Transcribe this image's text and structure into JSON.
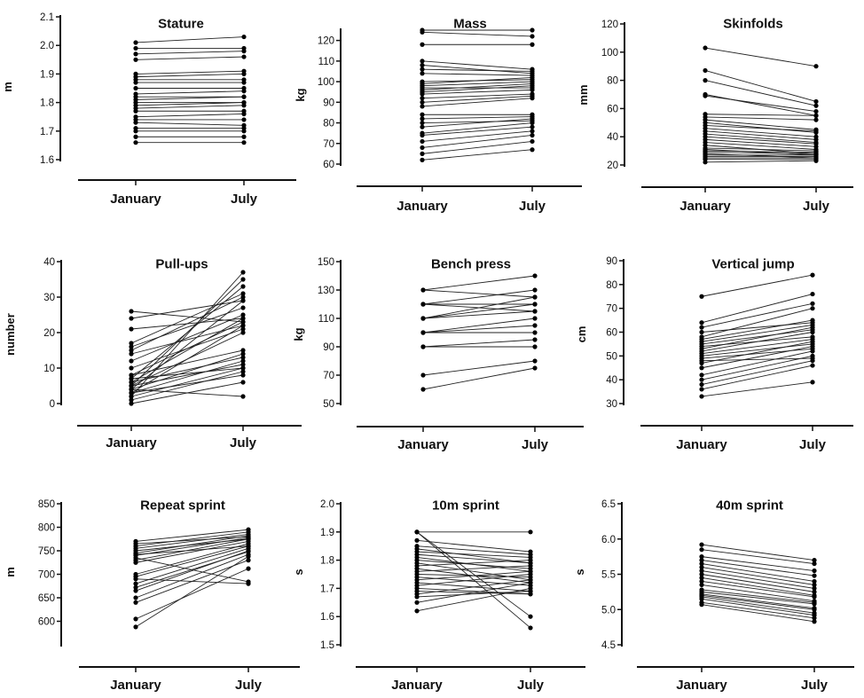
{
  "chart_data": [
    {
      "type": "line",
      "title": "Stature",
      "ylabel": "m",
      "categories": [
        "January",
        "July"
      ],
      "ylim": [
        1.6,
        2.1
      ],
      "yticks": [
        "1.6",
        "1.7",
        "1.8",
        "1.9",
        "2.0",
        "2.1"
      ],
      "pairs": [
        [
          1.66,
          1.66
        ],
        [
          1.68,
          1.68
        ],
        [
          1.7,
          1.7
        ],
        [
          1.71,
          1.71
        ],
        [
          1.73,
          1.72
        ],
        [
          1.74,
          1.74
        ],
        [
          1.75,
          1.76
        ],
        [
          1.77,
          1.77
        ],
        [
          1.78,
          1.79
        ],
        [
          1.79,
          1.8
        ],
        [
          1.8,
          1.8
        ],
        [
          1.81,
          1.82
        ],
        [
          1.82,
          1.82
        ],
        [
          1.83,
          1.84
        ],
        [
          1.85,
          1.85
        ],
        [
          1.87,
          1.87
        ],
        [
          1.88,
          1.88
        ],
        [
          1.89,
          1.9
        ],
        [
          1.9,
          1.91
        ],
        [
          1.95,
          1.96
        ],
        [
          1.97,
          1.98
        ],
        [
          1.99,
          1.99
        ],
        [
          2.01,
          2.03
        ]
      ]
    },
    {
      "type": "line",
      "title": "Mass",
      "ylabel": "kg",
      "categories": [
        "January",
        "July"
      ],
      "ylim": [
        60,
        125
      ],
      "yticks": [
        "60",
        "70",
        "80",
        "90",
        "100",
        "110",
        "120"
      ],
      "pairs": [
        [
          62,
          67
        ],
        [
          65,
          71
        ],
        [
          68,
          74
        ],
        [
          71,
          76
        ],
        [
          74,
          78
        ],
        [
          75,
          80
        ],
        [
          78,
          82
        ],
        [
          80,
          81
        ],
        [
          82,
          83
        ],
        [
          84,
          84
        ],
        [
          88,
          92
        ],
        [
          90,
          93
        ],
        [
          92,
          94
        ],
        [
          94,
          96
        ],
        [
          95,
          98
        ],
        [
          96,
          99
        ],
        [
          97,
          97
        ],
        [
          98,
          100
        ],
        [
          99,
          102
        ],
        [
          100,
          101
        ],
        [
          104,
          103
        ],
        [
          106,
          105
        ],
        [
          108,
          104
        ],
        [
          110,
          106
        ],
        [
          118,
          118
        ],
        [
          124,
          122
        ],
        [
          125,
          125
        ]
      ]
    },
    {
      "type": "line",
      "title": "Skinfolds",
      "ylabel": "mm",
      "categories": [
        "January",
        "July"
      ],
      "ylim": [
        20,
        120
      ],
      "yticks": [
        "20",
        "40",
        "60",
        "80",
        "100",
        "120"
      ],
      "pairs": [
        [
          22,
          23
        ],
        [
          24,
          24
        ],
        [
          25,
          25
        ],
        [
          26,
          26
        ],
        [
          27,
          27
        ],
        [
          28,
          25
        ],
        [
          29,
          28
        ],
        [
          30,
          29
        ],
        [
          31,
          27
        ],
        [
          32,
          30
        ],
        [
          34,
          28
        ],
        [
          36,
          31
        ],
        [
          38,
          33
        ],
        [
          40,
          35
        ],
        [
          42,
          36
        ],
        [
          44,
          38
        ],
        [
          46,
          40
        ],
        [
          48,
          44
        ],
        [
          50,
          43
        ],
        [
          52,
          45
        ],
        [
          54,
          52
        ],
        [
          56,
          55
        ],
        [
          69,
          58
        ],
        [
          70,
          55
        ],
        [
          80,
          62
        ],
        [
          87,
          65
        ],
        [
          103,
          90
        ]
      ]
    },
    {
      "type": "line",
      "title": "Pull-ups",
      "ylabel": "number",
      "categories": [
        "January",
        "July"
      ],
      "ylim": [
        0,
        40
      ],
      "yticks": [
        "0",
        "10",
        "20",
        "30",
        "40"
      ],
      "pairs": [
        [
          0,
          6
        ],
        [
          1,
          9
        ],
        [
          2,
          10
        ],
        [
          2,
          37
        ],
        [
          3,
          8
        ],
        [
          3,
          12
        ],
        [
          3,
          22
        ],
        [
          4,
          2
        ],
        [
          4,
          14
        ],
        [
          4,
          29
        ],
        [
          5,
          11
        ],
        [
          5,
          20
        ],
        [
          5,
          35
        ],
        [
          6,
          13
        ],
        [
          6,
          24
        ],
        [
          7,
          10
        ],
        [
          7,
          33
        ],
        [
          8,
          15
        ],
        [
          8,
          23
        ],
        [
          10,
          21
        ],
        [
          12,
          25
        ],
        [
          14,
          22
        ],
        [
          15,
          30
        ],
        [
          16,
          27
        ],
        [
          17,
          31
        ],
        [
          21,
          24
        ],
        [
          24,
          29
        ],
        [
          26,
          23
        ]
      ]
    },
    {
      "type": "line",
      "title": "Bench press",
      "ylabel": "kg",
      "categories": [
        "January",
        "July"
      ],
      "ylim": [
        50,
        150
      ],
      "yticks": [
        "50",
        "70",
        "90",
        "110",
        "130",
        "150"
      ],
      "pairs": [
        [
          60,
          75
        ],
        [
          70,
          80
        ],
        [
          90,
          90
        ],
        [
          90,
          95
        ],
        [
          100,
          100
        ],
        [
          100,
          105
        ],
        [
          100,
          110
        ],
        [
          110,
          115
        ],
        [
          110,
          120
        ],
        [
          110,
          125
        ],
        [
          120,
          115
        ],
        [
          120,
          120
        ],
        [
          120,
          130
        ],
        [
          130,
          125
        ],
        [
          130,
          140
        ]
      ]
    },
    {
      "type": "line",
      "title": "Vertical jump",
      "ylabel": "cm",
      "categories": [
        "January",
        "July"
      ],
      "ylim": [
        30,
        90
      ],
      "yticks": [
        "30",
        "40",
        "50",
        "60",
        "70",
        "80",
        "90"
      ],
      "pairs": [
        [
          33,
          39
        ],
        [
          36,
          46
        ],
        [
          38,
          48
        ],
        [
          40,
          50
        ],
        [
          42,
          52
        ],
        [
          45,
          54
        ],
        [
          47,
          56
        ],
        [
          48,
          49
        ],
        [
          49,
          53
        ],
        [
          50,
          55
        ],
        [
          51,
          57
        ],
        [
          52,
          60
        ],
        [
          53,
          62
        ],
        [
          54,
          58
        ],
        [
          55,
          61
        ],
        [
          56,
          63
        ],
        [
          57,
          65
        ],
        [
          58,
          70
        ],
        [
          60,
          64
        ],
        [
          62,
          72
        ],
        [
          64,
          76
        ],
        [
          75,
          84
        ]
      ]
    },
    {
      "type": "line",
      "title": "Repeat sprint",
      "ylabel": "m",
      "categories": [
        "January",
        "July"
      ],
      "ylim": [
        550,
        850
      ],
      "yticks": [
        "600",
        "650",
        "700",
        "750",
        "800",
        "850"
      ],
      "pairs": [
        [
          588,
          738
        ],
        [
          605,
          712
        ],
        [
          640,
          730
        ],
        [
          650,
          742
        ],
        [
          665,
          750
        ],
        [
          672,
          748
        ],
        [
          680,
          755
        ],
        [
          690,
          680
        ],
        [
          695,
          760
        ],
        [
          700,
          765
        ],
        [
          725,
          770
        ],
        [
          730,
          775
        ],
        [
          735,
          684
        ],
        [
          740,
          778
        ],
        [
          742,
          760
        ],
        [
          745,
          782
        ],
        [
          750,
          775
        ],
        [
          755,
          785
        ],
        [
          760,
          790
        ],
        [
          765,
          780
        ],
        [
          770,
          795
        ]
      ]
    },
    {
      "type": "line",
      "title": "10m sprint",
      "ylabel": "s",
      "categories": [
        "January",
        "July"
      ],
      "ylim": [
        1.5,
        2.0
      ],
      "yticks": [
        "1.5",
        "1.6",
        "1.7",
        "1.8",
        "1.9",
        "2.0"
      ],
      "pairs": [
        [
          1.62,
          1.7
        ],
        [
          1.65,
          1.72
        ],
        [
          1.67,
          1.69
        ],
        [
          1.68,
          1.73
        ],
        [
          1.69,
          1.68
        ],
        [
          1.7,
          1.68
        ],
        [
          1.71,
          1.75
        ],
        [
          1.72,
          1.69
        ],
        [
          1.73,
          1.76
        ],
        [
          1.74,
          1.71
        ],
        [
          1.75,
          1.74
        ],
        [
          1.76,
          1.78
        ],
        [
          1.77,
          1.72
        ],
        [
          1.78,
          1.8
        ],
        [
          1.79,
          1.73
        ],
        [
          1.8,
          1.77
        ],
        [
          1.81,
          1.76
        ],
        [
          1.82,
          1.79
        ],
        [
          1.83,
          1.81
        ],
        [
          1.84,
          1.79
        ],
        [
          1.85,
          1.82
        ],
        [
          1.87,
          1.83
        ],
        [
          1.9,
          1.56
        ],
        [
          1.9,
          1.6
        ],
        [
          1.9,
          1.9
        ]
      ]
    },
    {
      "type": "line",
      "title": "40m sprint",
      "ylabel": "s",
      "categories": [
        "January",
        "July"
      ],
      "ylim": [
        4.5,
        6.5
      ],
      "yticks": [
        "4.5",
        "5.0",
        "5.5",
        "6.0",
        "6.5"
      ],
      "pairs": [
        [
          5.07,
          4.83
        ],
        [
          5.1,
          4.88
        ],
        [
          5.15,
          4.92
        ],
        [
          5.18,
          4.95
        ],
        [
          5.2,
          5.0
        ],
        [
          5.22,
          5.02
        ],
        [
          5.25,
          5.08
        ],
        [
          5.28,
          5.1
        ],
        [
          5.35,
          5.12
        ],
        [
          5.4,
          5.18
        ],
        [
          5.45,
          5.2
        ],
        [
          5.5,
          5.25
        ],
        [
          5.55,
          5.3
        ],
        [
          5.6,
          5.35
        ],
        [
          5.65,
          5.4
        ],
        [
          5.7,
          5.48
        ],
        [
          5.75,
          5.55
        ],
        [
          5.85,
          5.65
        ],
        [
          5.92,
          5.7
        ]
      ]
    }
  ]
}
